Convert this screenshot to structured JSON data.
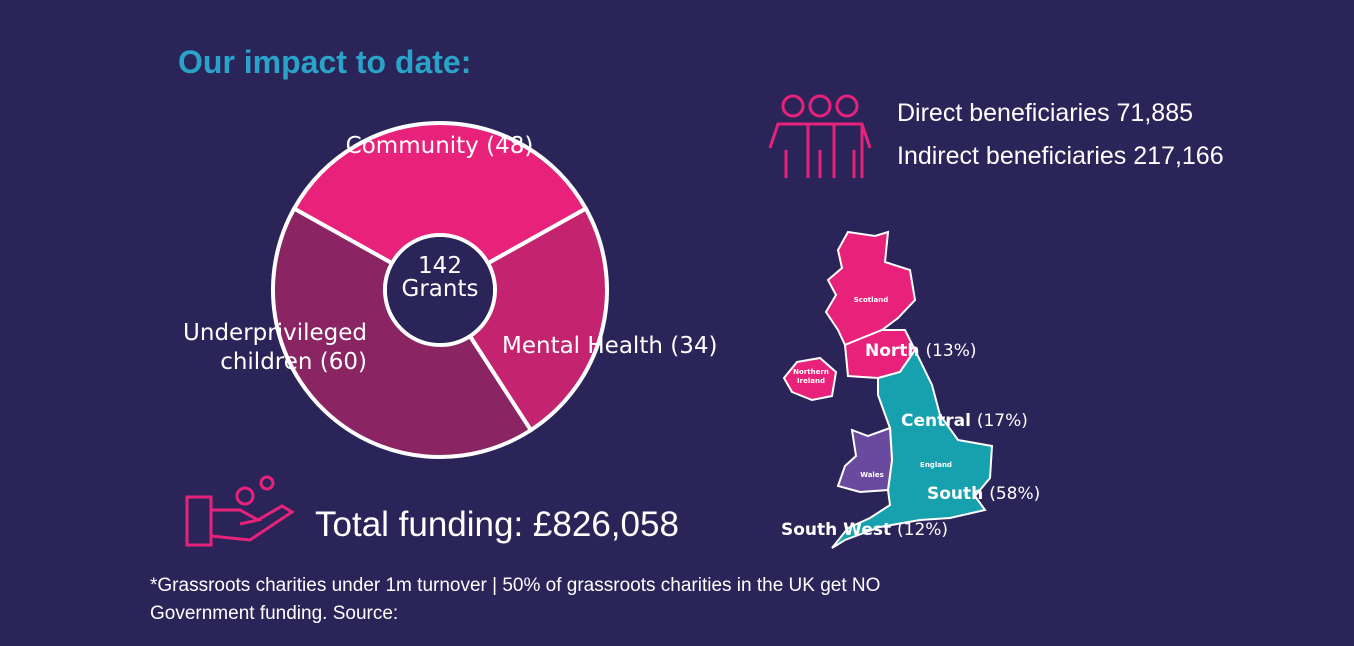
{
  "header": {
    "title": "Our impact to date:"
  },
  "chart_data": {
    "type": "pie",
    "categories": [
      "Community",
      "Mental Health",
      "Underprivileged children"
    ],
    "values": [
      48,
      34,
      60
    ],
    "value_labels": [
      "(48)",
      "(34)",
      "(60)"
    ],
    "colors": [
      "#e8227a",
      "#c4246f",
      "#8a2462"
    ],
    "center_value": 142,
    "center_text": "Grants"
  },
  "beneficiaries": [
    "Direct beneficiaries 71,885",
    "Indirect beneficiaries 217,166"
  ],
  "funding": "Total funding: £826,058",
  "map": {
    "countries": [
      "Scotland",
      "Northern Ireland",
      "Wales",
      "England"
    ],
    "regions": [
      {
        "name": "North",
        "share": "(13%)"
      },
      {
        "name": "Central",
        "share": "(17%)"
      },
      {
        "name": "South",
        "share": "(58%)"
      },
      {
        "name": "South West",
        "share": "(12%)"
      }
    ]
  },
  "footnote": [
    "*Grassroots charities under 1m turnover |  50% of grassroots charities in the UK get NO",
    "Government funding. Source:"
  ]
}
